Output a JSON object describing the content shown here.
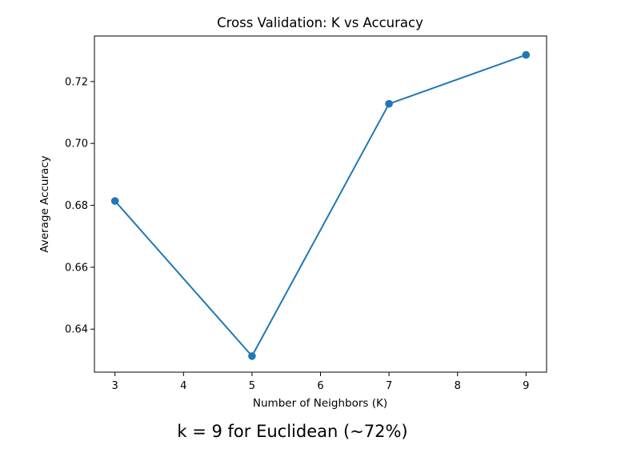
{
  "chart_data": {
    "type": "line",
    "title": "Cross Validation: K vs Accuracy",
    "xlabel": "Number of Neighbors (K)",
    "ylabel": "Average Accuracy",
    "x": [
      3,
      5,
      7,
      9
    ],
    "series": [
      {
        "values": [
          0.6814,
          0.6313,
          0.7128,
          0.7286
        ],
        "color": "#1f77b4"
      }
    ],
    "xlim": [
      2.7,
      9.3
    ],
    "ylim": [
      0.6261,
      0.7347
    ],
    "xticks": [
      3,
      4,
      5,
      6,
      7,
      8,
      9
    ],
    "yticks": [
      0.64,
      0.66,
      0.68,
      0.7,
      0.72
    ],
    "ytick_labels": [
      "0.64",
      "0.66",
      "0.68",
      "0.70",
      "0.72"
    ],
    "grid": false,
    "markers": true
  },
  "caption": "k = 9 for Euclidean (~72%)"
}
